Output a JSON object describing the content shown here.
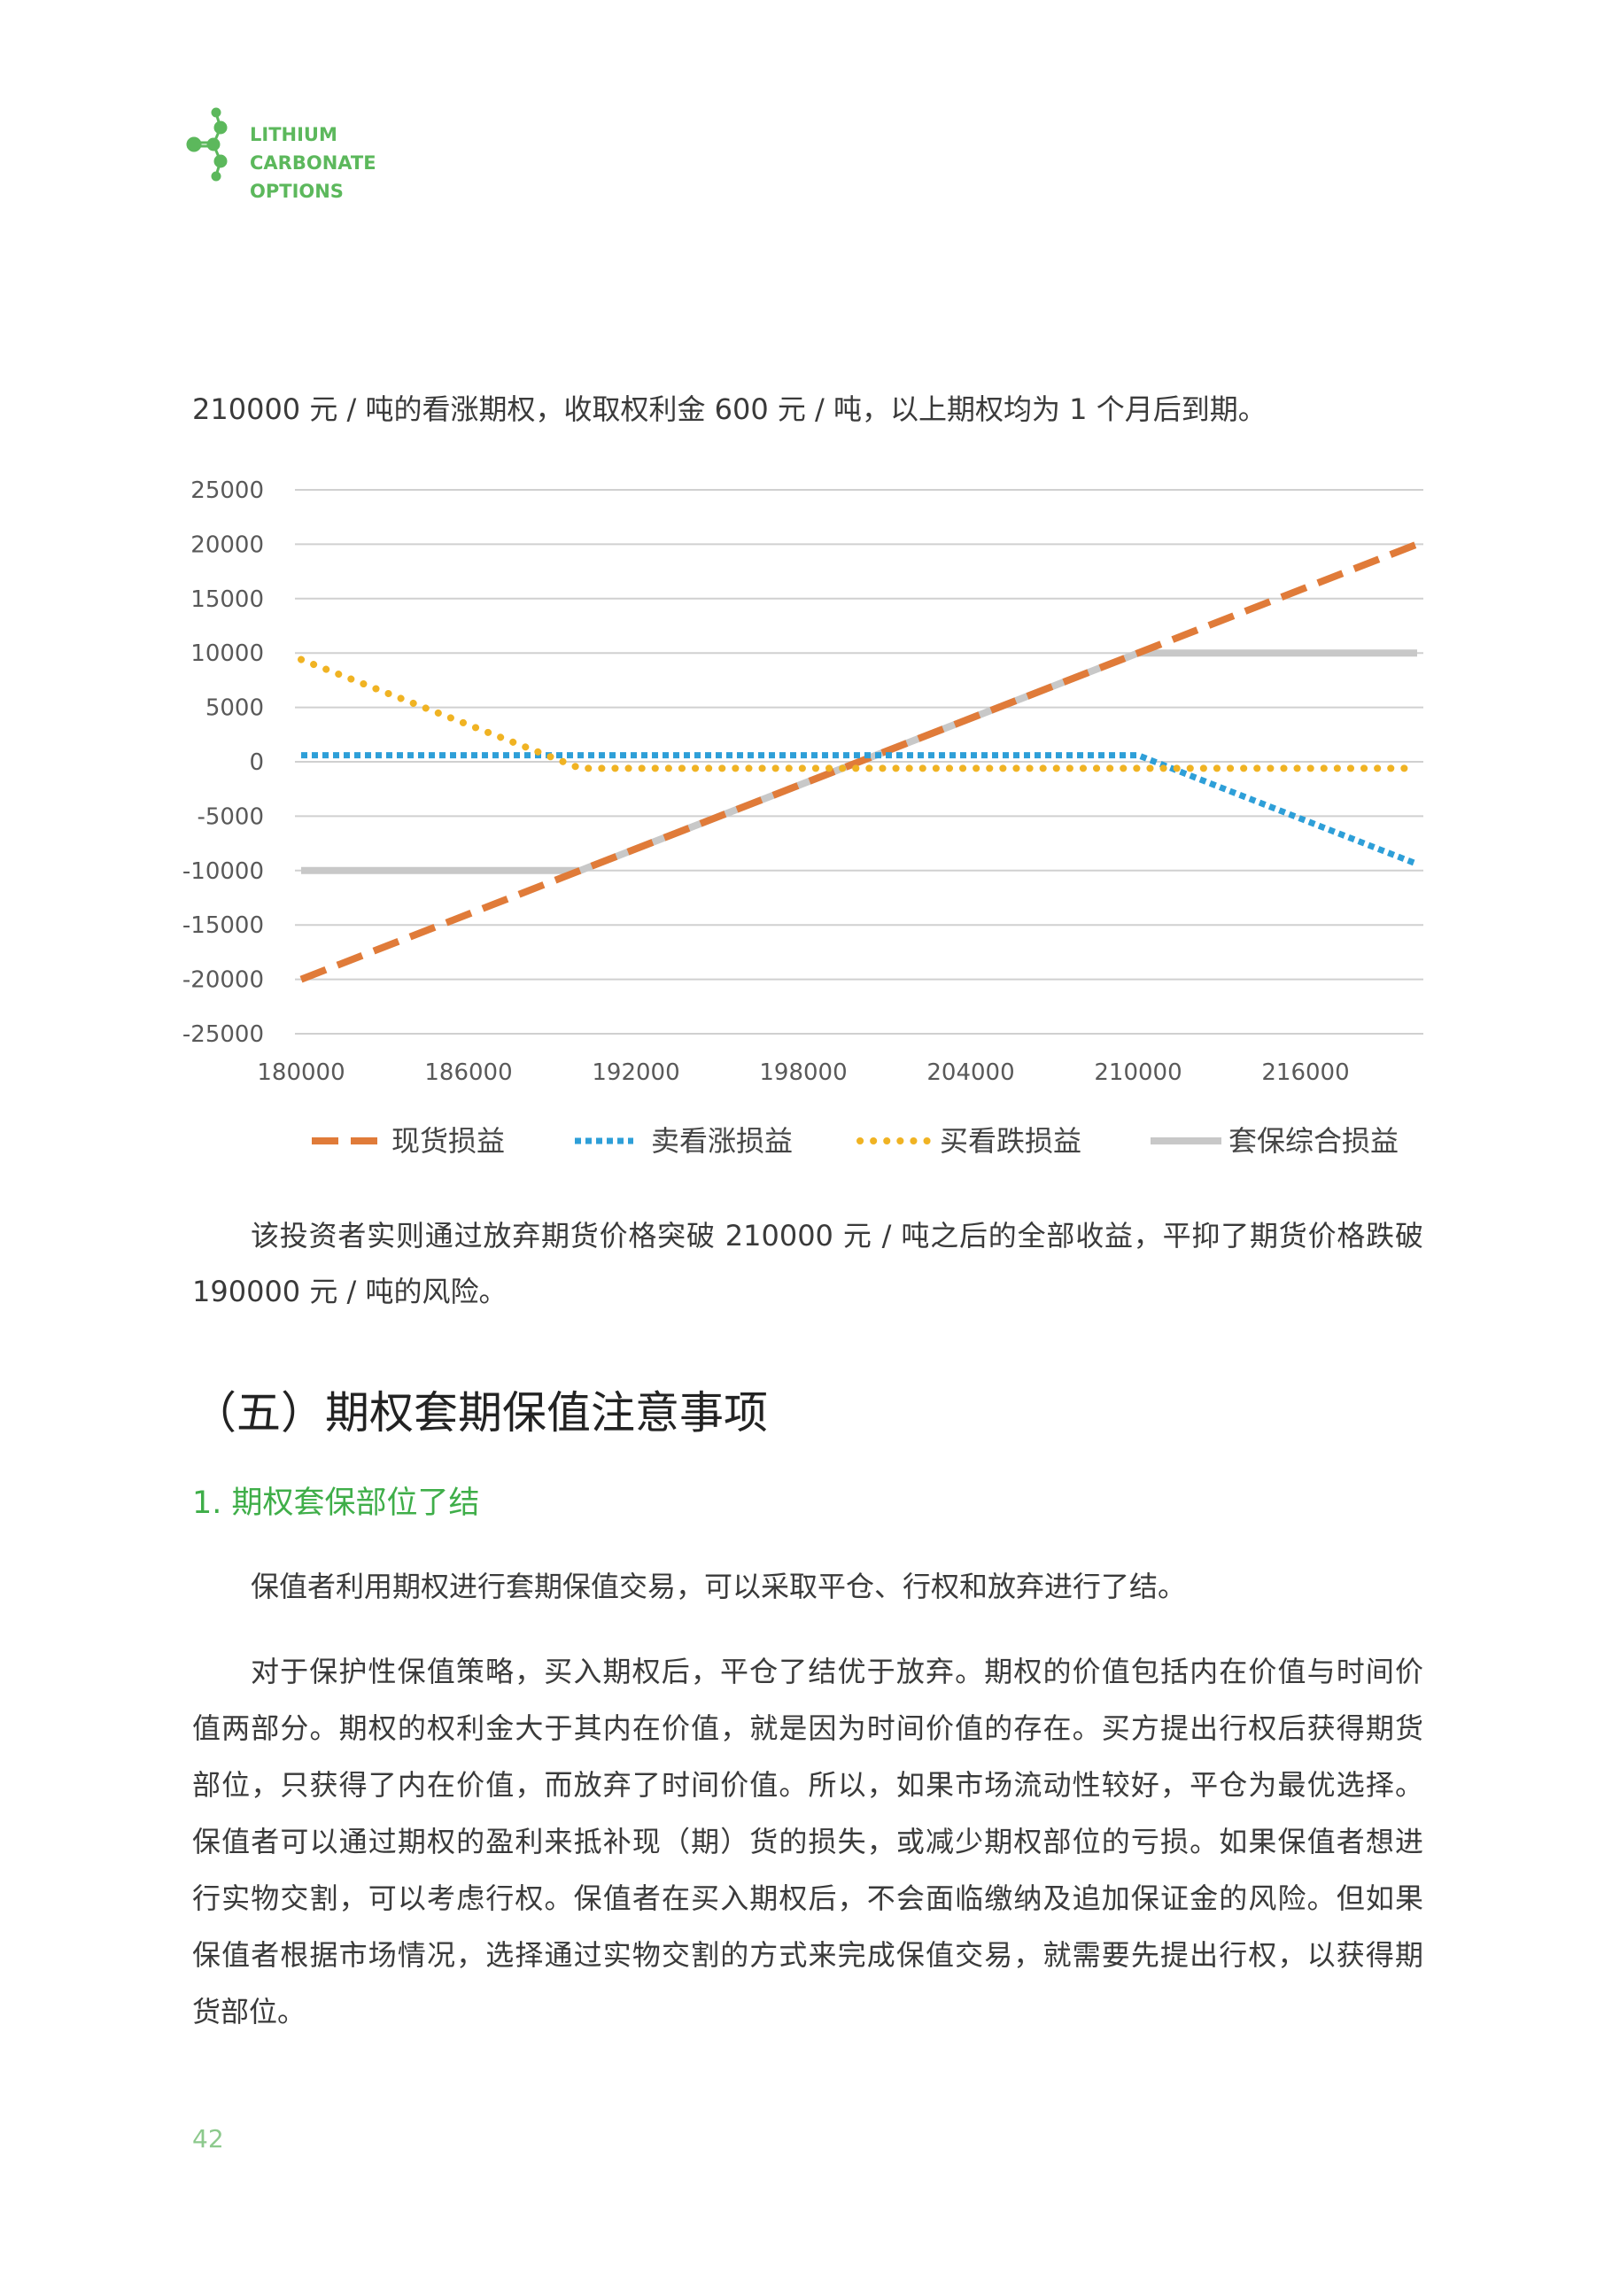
{
  "header": {
    "logo_line1": "LITHIUM CARBONATE",
    "logo_line2": "OPTIONS",
    "accent_color": "#5cb85c"
  },
  "intro_line": "210000 元 / 吨的看涨期权，收取权利金 600 元 / 吨，以上期权均为 1 个月后到期。",
  "chart_data": {
    "type": "line",
    "title": "",
    "xlabel": "",
    "ylabel": "",
    "x_ticks": [
      "180000",
      "186000",
      "192000",
      "198000",
      "204000",
      "210000",
      "216000"
    ],
    "y_ticks": [
      "25000",
      "20000",
      "15000",
      "10000",
      "5000",
      "0",
      "-5000",
      "-10000",
      "-15000",
      "-20000",
      "-25000"
    ],
    "xlim": [
      180000,
      220000
    ],
    "ylim": [
      -25000,
      25000
    ],
    "grid": true,
    "legend_position": "bottom",
    "series": [
      {
        "name": "现货损益",
        "style": "dashed",
        "color": "#e07b39",
        "x": [
          180000,
          220000
        ],
        "y": [
          -20000,
          20000
        ]
      },
      {
        "name": "卖看涨损益",
        "style": "dotted",
        "color": "#2e9fd8",
        "x": [
          180000,
          210000,
          220000
        ],
        "y": [
          600,
          600,
          -9400
        ]
      },
      {
        "name": "买看跌损益",
        "style": "round-dot",
        "color": "#f0b323",
        "x": [
          180000,
          190000,
          220000
        ],
        "y": [
          9400,
          -600,
          -600
        ]
      },
      {
        "name": "套保综合损益",
        "style": "solid",
        "color": "#c8c8c8",
        "x": [
          180000,
          190000,
          210000,
          220000
        ],
        "y": [
          -10000,
          -10000,
          10000,
          10000
        ]
      }
    ]
  },
  "para1": [
    "该投资者实则通过放弃期货价格突破 210000 元 / 吨之后的全部收益，平抑了期货价格跌破",
    "190000 元 / 吨的风险。"
  ],
  "section_heading": "（五）期权套期保值注意事项",
  "subheading": "1. 期权套保部位了结",
  "para2": "保值者利用期权进行套期保值交易，可以采取平仓、行权和放弃进行了结。",
  "para3": [
    "对于保护性保值策略，买入期权后，平仓了结优于放弃。期权的价值包括内在价值与时间价",
    "值两部分。期权的权利金大于其内在价值，就是因为时间价值的存在。买方提出行权后获得期货",
    "部位，只获得了内在价值，而放弃了时间价值。所以，如果市场流动性较好，平仓为最优选择。",
    "保值者可以通过期权的盈利来抵补现（期）货的损失，或减少期权部位的亏损。如果保值者想进",
    "行实物交割，可以考虑行权。保值者在买入期权后，不会面临缴纳及追加保证金的风险。但如果",
    "保值者根据市场情况，选择通过实物交割的方式来完成保值交易，就需要先提出行权，以获得期",
    "货部位。"
  ],
  "page_number": "42"
}
